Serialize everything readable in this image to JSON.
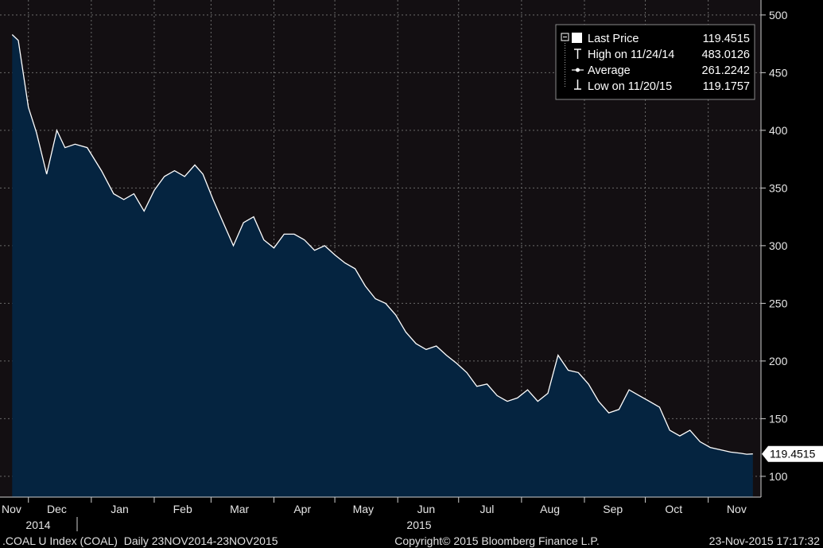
{
  "chart_data": {
    "type": "area",
    "y_ticks": [
      100,
      150,
      200,
      250,
      300,
      350,
      400,
      450,
      500
    ],
    "ylim": [
      82,
      513
    ],
    "grid": "on",
    "legend_position": "top-right",
    "month_labels": [
      "Nov",
      "Dec",
      "Jan",
      "Feb",
      "Mar",
      "Apr",
      "May",
      "Jun",
      "Jul",
      "Aug",
      "Sep",
      "Oct",
      "Nov"
    ],
    "year_labels": [
      "2014",
      "2015"
    ],
    "colors": {
      "background": "#130f12",
      "area_fill": "#052440",
      "line": "#ffffff",
      "grid": "#6a6a6a"
    },
    "series": [
      {
        "name": "Last Price",
        "x": [
          "2014-11-23",
          "2014-11-26",
          "2014-12-01",
          "2014-12-05",
          "2014-12-10",
          "2014-12-15",
          "2014-12-19",
          "2014-12-24",
          "2014-12-30",
          "2015-01-06",
          "2015-01-12",
          "2015-01-17",
          "2015-01-22",
          "2015-01-27",
          "2015-02-01",
          "2015-02-06",
          "2015-02-11",
          "2015-02-16",
          "2015-02-21",
          "2015-02-25",
          "2015-03-02",
          "2015-03-07",
          "2015-03-12",
          "2015-03-17",
          "2015-03-22",
          "2015-03-27",
          "2015-04-01",
          "2015-04-06",
          "2015-04-11",
          "2015-04-16",
          "2015-04-21",
          "2015-04-26",
          "2015-05-01",
          "2015-05-06",
          "2015-05-11",
          "2015-05-16",
          "2015-05-21",
          "2015-05-26",
          "2015-05-31",
          "2015-06-05",
          "2015-06-10",
          "2015-06-15",
          "2015-06-20",
          "2015-06-25",
          "2015-06-30",
          "2015-07-05",
          "2015-07-10",
          "2015-07-15",
          "2015-07-20",
          "2015-07-25",
          "2015-07-30",
          "2015-08-04",
          "2015-08-09",
          "2015-08-14",
          "2015-08-19",
          "2015-08-24",
          "2015-08-29",
          "2015-09-03",
          "2015-09-08",
          "2015-09-13",
          "2015-09-18",
          "2015-09-23",
          "2015-09-28",
          "2015-10-03",
          "2015-10-08",
          "2015-10-13",
          "2015-10-18",
          "2015-10-23",
          "2015-10-28",
          "2015-11-02",
          "2015-11-07",
          "2015-11-12",
          "2015-11-17",
          "2015-11-20",
          "2015-11-23"
        ],
        "y": [
          483,
          478,
          420,
          398,
          362,
          400,
          385,
          388,
          385,
          365,
          345,
          340,
          345,
          330,
          348,
          360,
          365,
          360,
          370,
          362,
          340,
          320,
          300,
          320,
          325,
          305,
          298,
          310,
          310,
          305,
          296,
          300,
          292,
          285,
          280,
          265,
          254,
          250,
          240,
          225,
          215,
          210,
          213,
          205,
          198,
          190,
          178,
          180,
          170,
          165,
          168,
          175,
          165,
          172,
          205,
          192,
          190,
          180,
          165,
          155,
          158,
          175,
          170,
          165,
          160,
          140,
          135,
          140,
          130,
          125,
          123,
          121,
          120,
          119.2,
          119.4515
        ]
      }
    ],
    "legend": [
      {
        "label": "Last Price",
        "value": "119.4515"
      },
      {
        "label": "High on 11/24/14",
        "value": "483.0126"
      },
      {
        "label": "Average",
        "value": "261.2242"
      },
      {
        "label": "Low on 11/20/15",
        "value": "119.1757"
      }
    ],
    "last_value_tag": "119.4515",
    "footer": {
      "left": ".COAL U Index (COAL)  Daily 23NOV2014-23NOV2015",
      "center": "Copyright© 2015 Bloomberg Finance L.P.",
      "right": "23-Nov-2015 17:17:32"
    }
  }
}
